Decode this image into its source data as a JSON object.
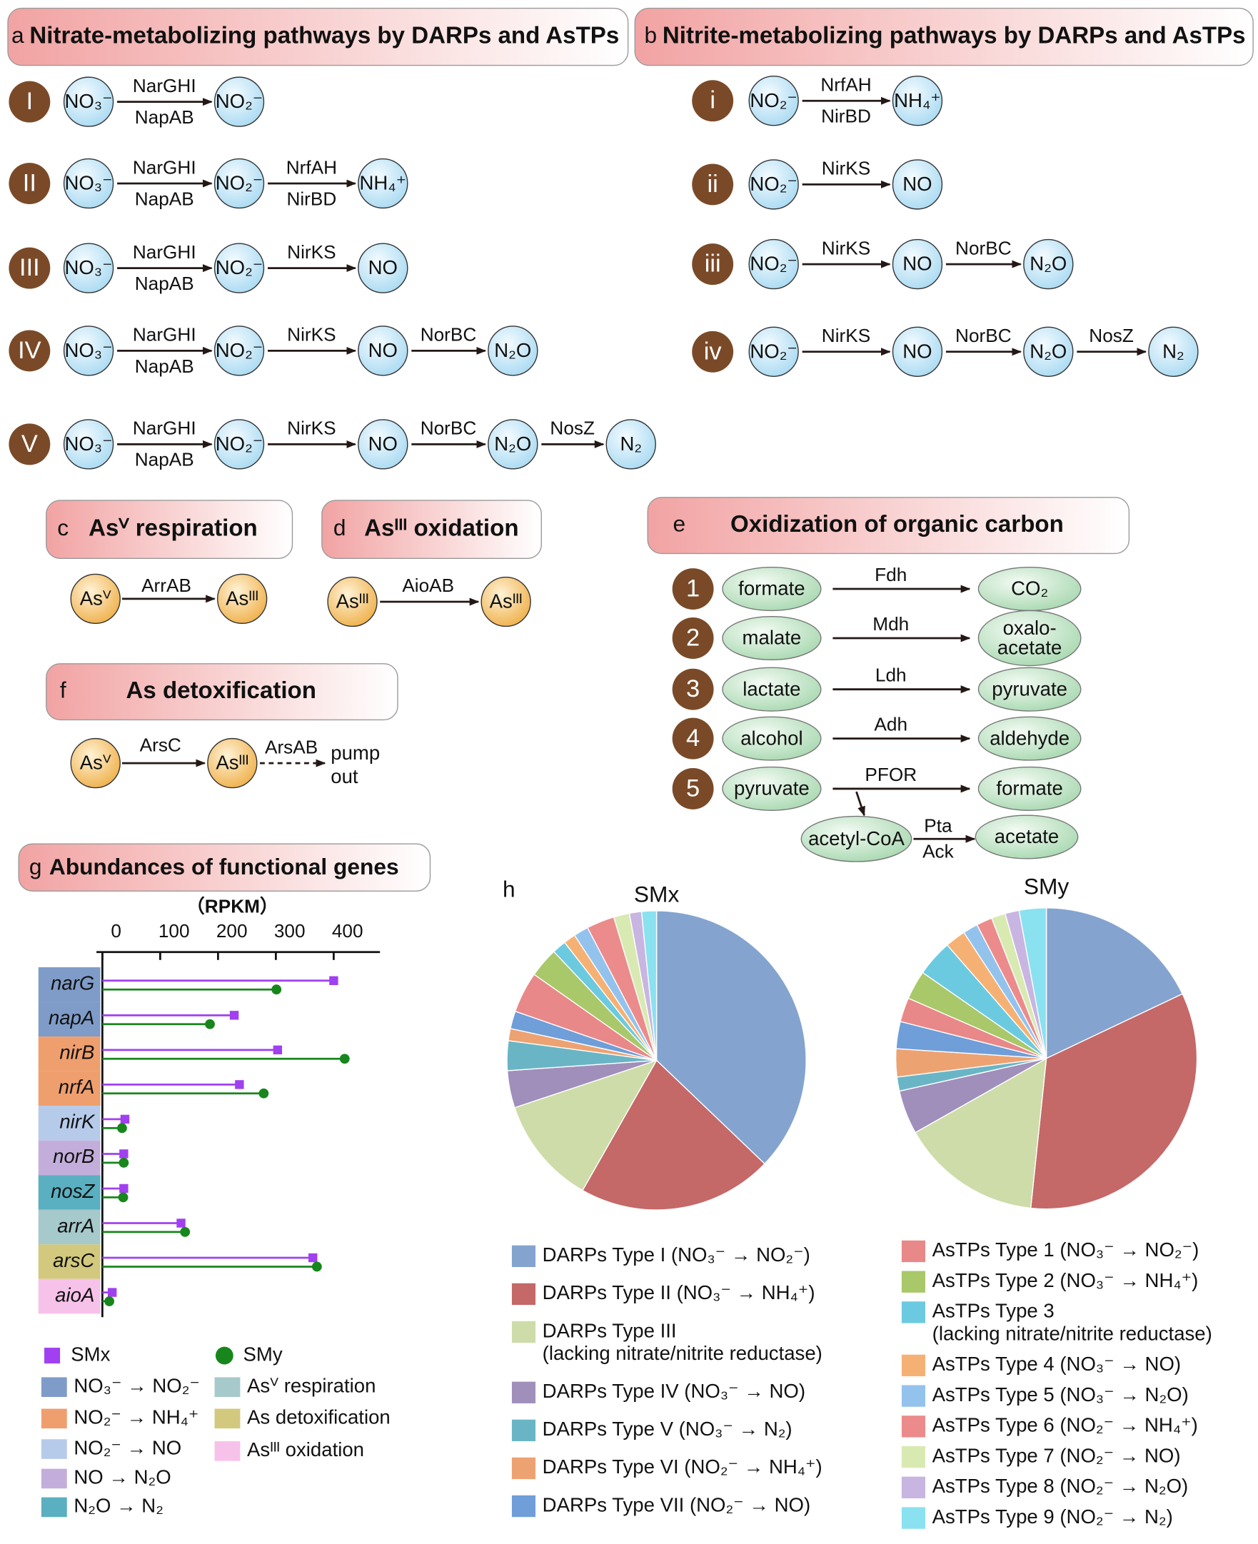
{
  "panel_a": {
    "label": "a",
    "title": "Nitrate-metabolizing pathways by DARPs and AsTPs",
    "pathways": [
      {
        "numeral": "I",
        "nodes": [
          "NO₃⁻",
          "NO₂⁻"
        ],
        "enzymes": [
          [
            "NarGHI",
            "NapAB"
          ]
        ]
      },
      {
        "numeral": "II",
        "nodes": [
          "NO₃⁻",
          "NO₂⁻",
          "NH₄⁺"
        ],
        "enzymes": [
          [
            "NarGHI",
            "NapAB"
          ],
          [
            "NrfAH",
            "NirBD"
          ]
        ]
      },
      {
        "numeral": "III",
        "nodes": [
          "NO₃⁻",
          "NO₂⁻",
          "NO"
        ],
        "enzymes": [
          [
            "NarGHI",
            "NapAB"
          ],
          [
            "NirKS"
          ]
        ]
      },
      {
        "numeral": "IV",
        "nodes": [
          "NO₃⁻",
          "NO₂⁻",
          "NO",
          "N₂O"
        ],
        "enzymes": [
          [
            "NarGHI",
            "NapAB"
          ],
          [
            "NirKS"
          ],
          [
            "NorBC"
          ]
        ]
      },
      {
        "numeral": "V",
        "nodes": [
          "NO₃⁻",
          "NO₂⁻",
          "NO",
          "N₂O",
          "N₂"
        ],
        "enzymes": [
          [
            "NarGHI",
            "NapAB"
          ],
          [
            "NirKS"
          ],
          [
            "NorBC"
          ],
          [
            "NosZ"
          ]
        ]
      }
    ]
  },
  "panel_b": {
    "label": "b",
    "title": "Nitrite-metabolizing pathways by DARPs and AsTPs",
    "pathways": [
      {
        "numeral": "i",
        "nodes": [
          "NO₂⁻",
          "NH₄⁺"
        ],
        "enzymes": [
          [
            "NrfAH",
            "NirBD"
          ]
        ]
      },
      {
        "numeral": "ii",
        "nodes": [
          "NO₂⁻",
          "NO"
        ],
        "enzymes": [
          [
            "NirKS"
          ]
        ]
      },
      {
        "numeral": "iii",
        "nodes": [
          "NO₂⁻",
          "NO",
          "N₂O"
        ],
        "enzymes": [
          [
            "NirKS"
          ],
          [
            "NorBC"
          ]
        ]
      },
      {
        "numeral": "iv",
        "nodes": [
          "NO₂⁻",
          "NO",
          "N₂O",
          "N₂"
        ],
        "enzymes": [
          [
            "NirKS"
          ],
          [
            "NorBC"
          ],
          [
            "NosZ"
          ]
        ]
      }
    ]
  },
  "panel_c": {
    "label": "c",
    "title": "Asⱽ respiration",
    "nodes": [
      "Asⱽ",
      "Asᴵᴵᴵ"
    ],
    "enzyme": "ArrAB"
  },
  "panel_d": {
    "label": "d",
    "title": "Asᴵᴵᴵ oxidation",
    "nodes": [
      "Asᴵᴵᴵ",
      "Asᴵᴵᴵ"
    ],
    "enzyme": "AioAB"
  },
  "panel_e": {
    "label": "e",
    "title": "Oxidization of organic carbon",
    "reactions": [
      {
        "number": "1",
        "substrate": "formate",
        "enzyme": "Fdh",
        "product": "CO₂"
      },
      {
        "number": "2",
        "substrate": "malate",
        "enzyme": "Mdh",
        "product": [
          "oxalo-",
          "acetate"
        ]
      },
      {
        "number": "3",
        "substrate": "lactate",
        "enzyme": "Ldh",
        "product": "pyruvate"
      },
      {
        "number": "4",
        "substrate": "alcohol",
        "enzyme": "Adh",
        "product": "aldehyde"
      },
      {
        "number": "5",
        "substrate": "pyruvate",
        "enzyme": "PFOR",
        "product": "formate",
        "branch": {
          "intermediate": "acetyl-CoA",
          "enzymes": [
            "Pta",
            "Ack"
          ],
          "product": "acetate"
        }
      }
    ]
  },
  "panel_f": {
    "label": "f",
    "title": "As detoxification",
    "nodes": [
      "Asⱽ",
      "Asᴵᴵᴵ"
    ],
    "enzymes": [
      "ArsC",
      "ArsAB"
    ],
    "end": [
      "pump",
      "out"
    ]
  },
  "chart_data": [
    {
      "type": "lollipop",
      "label": "g",
      "title": "Abundances of functional genes",
      "x_label": "（RPKM）",
      "categories": [
        "narG",
        "napA",
        "nirB",
        "nrfA",
        "nirK",
        "norB",
        "nosZ",
        "arrA",
        "arsC",
        "aioA"
      ],
      "category_colors": [
        "#7f9cc8",
        "#7f9cc8",
        "#ef9f6e",
        "#ef9f6e",
        "#b6cbea",
        "#c3aedb",
        "#5aafc0",
        "#a6c9cb",
        "#d2c97e",
        "#f7c2ea"
      ],
      "series": [
        {
          "name": "SMx",
          "color": "#a040f0",
          "marker": "square",
          "values": [
            400,
            228,
            303,
            237,
            39,
            37,
            37,
            136,
            364,
            17
          ]
        },
        {
          "name": "SMy",
          "color": "#17861c",
          "marker": "circle",
          "values": [
            301,
            186,
            419,
            279,
            34,
            37,
            36,
            143,
            371,
            12
          ]
        }
      ],
      "xlim": [
        0,
        480
      ],
      "xticks": [
        0,
        100,
        200,
        300,
        400
      ],
      "groups": [
        {
          "name": "NO₃⁻ → NO₂⁻",
          "color": "#7f9cc8"
        },
        {
          "name": "NO₂⁻ → NH₄⁺",
          "color": "#ef9f6e"
        },
        {
          "name": "NO₂⁻ → NO",
          "color": "#b6cbea"
        },
        {
          "name": "NO → N₂O",
          "color": "#c3aedb"
        },
        {
          "name": "N₂O → N₂",
          "color": "#5aafc0"
        },
        {
          "name": "Asⱽ respiration",
          "color": "#a6c9cb"
        },
        {
          "name": "As detoxification",
          "color": "#d2c97e"
        },
        {
          "name": "Asᴵᴵᴵ oxidation",
          "color": "#f7c2ea"
        }
      ]
    },
    {
      "type": "pie",
      "label": "h",
      "title": "SMx",
      "labels": [
        "DARPs Type I (NO₃⁻ → NO₂⁻)",
        "DARPs Type II (NO₃⁻ → NH₄⁺)",
        [
          "DARPs Type III",
          "(lacking nitrate/nitrite reductase)"
        ],
        "DARPs Type IV (NO₃⁻ → NO)",
        "DARPs Type V (NO₃⁻ → N₂)",
        "DARPs Type VI (NO₂⁻ → NH₄⁺)",
        "DARPs Type VII (NO₂⁻ → NO)",
        "AsTPs Type 1 (NO₃⁻ → NO₂⁻)",
        "AsTPs Type 2 (NO₃⁻ → NH₄⁺)",
        [
          "AsTPs Type 3",
          "(lacking nitrate/nitrite reductase)"
        ],
        "AsTPs Type 4 (NO₃⁻ → NO)",
        "AsTPs Type 5 (NO₃⁻ → N₂O)",
        "AsTPs Type 6 (NO₂⁻ → NH₄⁺)",
        "AsTPs Type 7 (NO₂⁻ → NO)",
        "AsTPs Type 8 (NO₂⁻ → N₂O)",
        "AsTPs Type 9 (NO₂⁻ → N₂)"
      ],
      "colors": [
        "#84a4cf",
        "#c56868",
        "#cddca9",
        "#a08fbb",
        "#6ab5c5",
        "#eda272",
        "#6f9ed9",
        "#e88888",
        "#a9c86a",
        "#6ccae0",
        "#f5b174",
        "#93c3ed",
        "#ec8b8b",
        "#d8eab2",
        "#c8b5e1",
        "#8ae1f0"
      ],
      "values": [
        37,
        21,
        11.6,
        4,
        3.2,
        1.3,
        1.9,
        4.4,
        3.2,
        1.5,
        1.3,
        1.6,
        3,
        1.7,
        1.3,
        1.6
      ]
    },
    {
      "type": "pie",
      "title": "SMy",
      "values": [
        17.9,
        33.6,
        15.1,
        4.7,
        1.5,
        3,
        2.9,
        2.6,
        3.1,
        3.9,
        2.2,
        1.6,
        1.7,
        1.5,
        1.5,
        2.9
      ]
    }
  ]
}
